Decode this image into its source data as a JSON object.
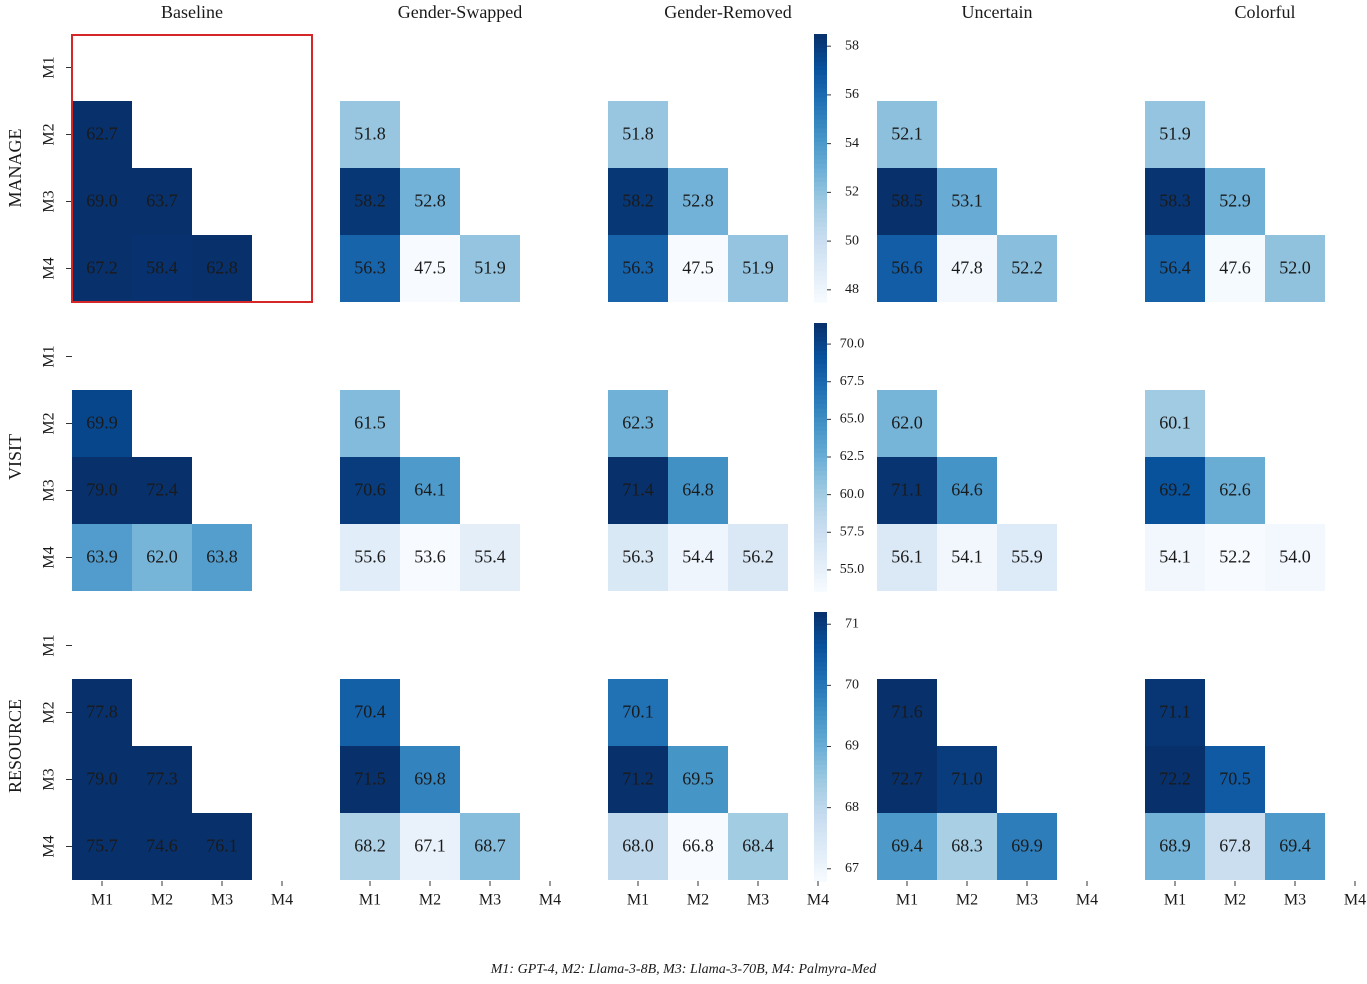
{
  "chart_data": {
    "type": "heatmap",
    "columns": [
      "Baseline",
      "Gender-Swapped",
      "Gender-Removed",
      "Uncertain",
      "Colorful"
    ],
    "rows": [
      "MANAGE",
      "VISIT",
      "RESOURCE"
    ],
    "models": [
      "M1",
      "M2",
      "M3",
      "M4"
    ],
    "highlight": {
      "row": 0,
      "col": 0,
      "color": "#d62728"
    },
    "colormap": "Blues",
    "caption": "M1: GPT-4, M2: Llama-3-8B, M3: Llama-3-70B, M4: Palmyra-Med",
    "colorbars": [
      {
        "row": 0,
        "vmin": 47.5,
        "vmax": 58.5,
        "ticks": [
          "48",
          "50",
          "52",
          "54",
          "56",
          "58"
        ],
        "tick_values": [
          48,
          50,
          52,
          54,
          56,
          58
        ]
      },
      {
        "row": 1,
        "vmin": 53.6,
        "vmax": 71.4,
        "ticks": [
          "55.0",
          "57.5",
          "60.0",
          "62.5",
          "65.0",
          "67.5",
          "70.0"
        ],
        "tick_values": [
          55.0,
          57.5,
          60.0,
          62.5,
          65.0,
          67.5,
          70.0
        ]
      },
      {
        "row": 2,
        "vmin": 66.8,
        "vmax": 71.2,
        "ticks": [
          "67",
          "68",
          "69",
          "70",
          "71"
        ],
        "tick_values": [
          67,
          68,
          69,
          70,
          71
        ]
      }
    ],
    "cells": [
      [
        [
          "62.7",
          "69.0",
          "63.7",
          "67.2",
          "58.4",
          "62.8"
        ],
        [
          "51.8",
          "58.2",
          "52.8",
          "56.3",
          "47.5",
          "51.9"
        ],
        [
          "51.8",
          "58.2",
          "52.8",
          "56.3",
          "47.5",
          "51.9"
        ],
        [
          "52.1",
          "58.5",
          "53.1",
          "56.6",
          "47.8",
          "52.2"
        ],
        [
          "51.9",
          "58.3",
          "52.9",
          "56.4",
          "47.6",
          "52.0"
        ]
      ],
      [
        [
          "69.9",
          "79.0",
          "72.4",
          "63.9",
          "62.0",
          "63.8"
        ],
        [
          "61.5",
          "70.6",
          "64.1",
          "55.6",
          "53.6",
          "55.4"
        ],
        [
          "62.3",
          "71.4",
          "64.8",
          "56.3",
          "54.4",
          "56.2"
        ],
        [
          "62.0",
          "71.1",
          "64.6",
          "56.1",
          "54.1",
          "55.9"
        ],
        [
          "60.1",
          "69.2",
          "62.6",
          "54.1",
          "52.2",
          "54.0"
        ]
      ],
      [
        [
          "77.8",
          "79.0",
          "77.3",
          "75.7",
          "74.6",
          "76.1"
        ],
        [
          "70.4",
          "71.5",
          "69.8",
          "68.2",
          "67.1",
          "68.7"
        ],
        [
          "70.1",
          "71.2",
          "69.5",
          "68.0",
          "66.8",
          "68.4"
        ],
        [
          "71.6",
          "72.7",
          "71.0",
          "69.4",
          "68.3",
          "69.9"
        ],
        [
          "71.1",
          "72.2",
          "70.5",
          "68.9",
          "67.8",
          "69.4"
        ]
      ]
    ]
  }
}
